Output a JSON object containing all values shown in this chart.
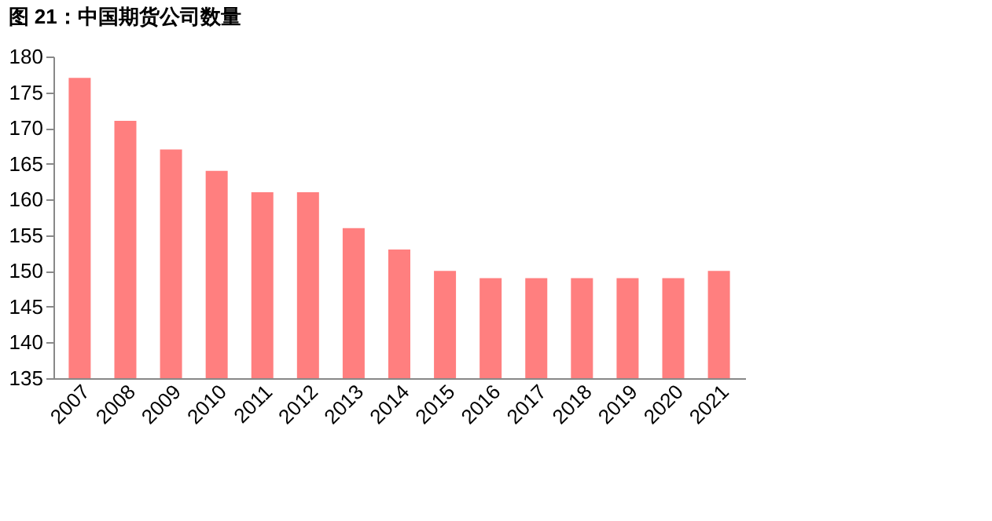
{
  "chart_data": {
    "type": "bar",
    "title": "图 21：中国期货公司数量",
    "categories": [
      "2007",
      "2008",
      "2009",
      "2010",
      "2011",
      "2012",
      "2013",
      "2014",
      "2015",
      "2016",
      "2017",
      "2018",
      "2019",
      "2020",
      "2021"
    ],
    "values": [
      177,
      171,
      167,
      164,
      161,
      161,
      156,
      153,
      150,
      149,
      149,
      149,
      149,
      149,
      150
    ],
    "color": "#ff7f7f",
    "ylim": [
      135,
      180
    ],
    "yticks": [
      135,
      140,
      145,
      150,
      155,
      160,
      165,
      170,
      175,
      180
    ],
    "grid": false
  }
}
